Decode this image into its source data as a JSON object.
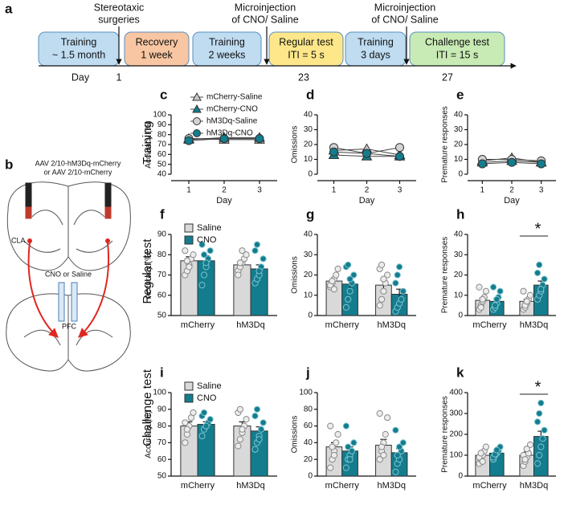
{
  "timeline": {
    "panel": "a",
    "stages": [
      {
        "label": [
          "Training",
          "~ 1.5 month"
        ],
        "color": "#bfdcf1"
      },
      {
        "label": [
          "Recovery",
          "1 week"
        ],
        "color": "#f8c6a2"
      },
      {
        "label": [
          "Training",
          "2 weeks"
        ],
        "color": "#bfdcf1"
      },
      {
        "label": [
          "Regular test",
          "ITI = 5 s"
        ],
        "color": "#fde78a"
      },
      {
        "label": [
          "Training",
          "3 days"
        ],
        "color": "#bfdcf1"
      },
      {
        "label": [
          "Challenge test",
          "ITI = 15 s"
        ],
        "color": "#c8eab4"
      }
    ],
    "events": [
      [
        "Stereotaxic",
        "surgeries"
      ],
      [
        "Microinjection",
        "of CNO/ Saline"
      ],
      [
        "Microinjection",
        "of CNO/ Saline"
      ]
    ],
    "day_label": "Day",
    "days": [
      "1",
      "23",
      "27"
    ]
  },
  "brain": {
    "panel": "b",
    "virus": [
      "AAV 2/10-hM3Dq-mCherry",
      "or AAV 2/10-mCherry"
    ],
    "source": "CLA",
    "injection": "CNO or Saline",
    "target": "PFC"
  },
  "row_labels": [
    "Training",
    "Regular test",
    "Challenge test"
  ],
  "chart_data": [
    {
      "type": "line",
      "panel": "c",
      "ylabel": "Accuracy (%)",
      "xlabel": "Day",
      "x": [
        1,
        2,
        3
      ],
      "xlim": [
        0.5,
        3.5
      ],
      "xticks": [
        1,
        2,
        3
      ],
      "ylim": [
        40,
        100
      ],
      "yticks": [
        40,
        50,
        60,
        70,
        80,
        90,
        100
      ],
      "legend": "upper center",
      "series": [
        {
          "name": "mCherry-Saline",
          "color": "#c8c8c8",
          "marker": "triangle",
          "values": [
            76,
            75,
            75
          ]
        },
        {
          "name": "mCherry-CNO",
          "color": "#137d8e",
          "marker": "triangle",
          "values": [
            75,
            77,
            77
          ]
        },
        {
          "name": "hM3Dq-Saline",
          "color": "#d3d3d3",
          "marker": "circle",
          "values": [
            76,
            76,
            76
          ]
        },
        {
          "name": "hM3Dq-CNO",
          "color": "#137d8e",
          "marker": "circle",
          "values": [
            74,
            76,
            76
          ]
        }
      ]
    },
    {
      "type": "line",
      "panel": "d",
      "ylabel": "Omissions",
      "xlabel": "Day",
      "x": [
        1,
        2,
        3
      ],
      "xlim": [
        0.5,
        3.5
      ],
      "xticks": [
        1,
        2,
        3
      ],
      "ylim": [
        0,
        40
      ],
      "yticks": [
        0,
        10,
        20,
        30,
        40
      ],
      "series": [
        {
          "name": "mCherry-Saline",
          "color": "#c8c8c8",
          "marker": "triangle",
          "values": [
            16,
            17,
            13
          ]
        },
        {
          "name": "mCherry-CNO",
          "color": "#137d8e",
          "marker": "triangle",
          "values": [
            13,
            12,
            12
          ]
        },
        {
          "name": "hM3Dq-Saline",
          "color": "#d3d3d3",
          "marker": "circle",
          "values": [
            18,
            14,
            18
          ]
        },
        {
          "name": "hM3Dq-CNO",
          "color": "#137d8e",
          "marker": "circle",
          "values": [
            15,
            14,
            12
          ]
        }
      ]
    },
    {
      "type": "line",
      "panel": "e",
      "ylabel": "Premature responses",
      "xlabel": "Day",
      "x": [
        1,
        2,
        3
      ],
      "xlim": [
        0.5,
        3.5
      ],
      "xticks": [
        1,
        2,
        3
      ],
      "ylim": [
        0,
        40
      ],
      "yticks": [
        0,
        10,
        20,
        30,
        40
      ],
      "series": [
        {
          "name": "mCherry-Saline",
          "color": "#c8c8c8",
          "marker": "triangle",
          "values": [
            9,
            11,
            8
          ]
        },
        {
          "name": "mCherry-CNO",
          "color": "#137d8e",
          "marker": "triangle",
          "values": [
            8,
            9,
            8
          ]
        },
        {
          "name": "hM3Dq-Saline",
          "color": "#d3d3d3",
          "marker": "circle",
          "values": [
            10,
            10,
            9
          ]
        },
        {
          "name": "hM3Dq-CNO",
          "color": "#137d8e",
          "marker": "circle",
          "values": [
            7,
            8,
            7
          ]
        }
      ]
    },
    {
      "type": "bar",
      "panel": "f",
      "ylabel": "Accuracy (%)",
      "categories": [
        "mCherry",
        "hM3Dq"
      ],
      "ylim": [
        50,
        90
      ],
      "yticks": [
        50,
        60,
        70,
        80,
        90
      ],
      "legend": "upper left",
      "series": [
        {
          "name": "Saline",
          "color": "#d9d9d9",
          "values": [
            77,
            75
          ],
          "errors": [
            2,
            1.5
          ],
          "points": [
            [
              70,
              72,
              75,
              78,
              80,
              82,
              77,
              74
            ],
            [
              72,
              74,
              76,
              78,
              80,
              70,
              76,
              82
            ]
          ]
        },
        {
          "name": "CNO",
          "color": "#137d8e",
          "values": [
            77,
            73
          ],
          "errors": [
            2.5,
            2
          ],
          "points": [
            [
              65,
              70,
              74,
              78,
              82,
              85,
              80,
              76
            ],
            [
              66,
              68,
              70,
              74,
              78,
              82,
              85,
              72
            ]
          ]
        }
      ]
    },
    {
      "type": "bar",
      "panel": "g",
      "ylabel": "Omissions",
      "categories": [
        "mCherry",
        "hM3Dq"
      ],
      "ylim": [
        0,
        40
      ],
      "yticks": [
        0,
        10,
        20,
        30,
        40
      ],
      "series": [
        {
          "name": "Saline",
          "color": "#d9d9d9",
          "values": [
            17,
            15
          ],
          "errors": [
            1.5,
            2.5
          ],
          "points": [
            [
              14,
              16,
              18,
              20,
              23,
              15,
              17,
              13
            ],
            [
              5,
              8,
              12,
              16,
              20,
              23,
              25,
              18
            ]
          ]
        },
        {
          "name": "CNO",
          "color": "#137d8e",
          "values": [
            15.5,
            10.5
          ],
          "errors": [
            2.5,
            2.5
          ],
          "points": [
            [
              4,
              8,
              12,
              16,
              20,
              24,
              25,
              18
            ],
            [
              2,
              4,
              6,
              8,
              12,
              16,
              20,
              24
            ]
          ]
        }
      ]
    },
    {
      "type": "bar",
      "panel": "h",
      "ylabel": "Premature responses",
      "categories": [
        "mCherry",
        "hM3Dq"
      ],
      "ylim": [
        0,
        40
      ],
      "yticks": [
        0,
        10,
        20,
        30,
        40
      ],
      "annotation": "*",
      "series": [
        {
          "name": "Saline",
          "color": "#d9d9d9",
          "values": [
            7.5,
            7
          ],
          "errors": [
            1.2,
            1
          ],
          "points": [
            [
              3,
              5,
              7,
              9,
              12,
              14,
              4,
              8
            ],
            [
              3,
              4,
              6,
              8,
              10,
              12,
              5,
              7
            ]
          ]
        },
        {
          "name": "CNO",
          "color": "#137d8e",
          "values": [
            7,
            15
          ],
          "errors": [
            1.5,
            2
          ],
          "points": [
            [
              3,
              4,
              6,
              9,
              12,
              14,
              5,
              8
            ],
            [
              8,
              10,
              12,
              15,
              18,
              21,
              25,
              13
            ]
          ]
        }
      ]
    },
    {
      "type": "bar",
      "panel": "i",
      "ylabel": "Accuracy (%)",
      "categories": [
        "mCherry",
        "hM3Dq"
      ],
      "ylim": [
        50,
        100
      ],
      "yticks": [
        50,
        60,
        70,
        80,
        90,
        100
      ],
      "legend": "upper left",
      "series": [
        {
          "name": "Saline",
          "color": "#d9d9d9",
          "values": [
            80,
            80
          ],
          "errors": [
            2.5,
            2.5
          ],
          "points": [
            [
              70,
              75,
              80,
              85,
              88,
              82,
              78
            ],
            [
              68,
              72,
              76,
              80,
              84,
              88,
              90,
              78
            ]
          ]
        },
        {
          "name": "CNO",
          "color": "#137d8e",
          "values": [
            81,
            77
          ],
          "errors": [
            1.5,
            2.5
          ],
          "points": [
            [
              74,
              78,
              80,
              82,
              84,
              86,
              88,
              80
            ],
            [
              66,
              70,
              74,
              78,
              82,
              86,
              90,
              72
            ]
          ]
        }
      ]
    },
    {
      "type": "bar",
      "panel": "j",
      "ylabel": "Omissions",
      "categories": [
        "mCherry",
        "hM3Dq"
      ],
      "ylim": [
        0,
        100
      ],
      "yticks": [
        0,
        20,
        40,
        60,
        80,
        100
      ],
      "series": [
        {
          "name": "Saline",
          "color": "#d9d9d9",
          "values": [
            35,
            37
          ],
          "errors": [
            5,
            7
          ],
          "points": [
            [
              10,
              20,
              30,
              40,
              50,
              60,
              35,
              25
            ],
            [
              20,
              30,
              40,
              50,
              70,
              75,
              35,
              25
            ]
          ]
        },
        {
          "name": "CNO",
          "color": "#137d8e",
          "values": [
            30,
            28
          ],
          "errors": [
            5,
            5
          ],
          "points": [
            [
              10,
              20,
              25,
              30,
              40,
              60,
              35,
              20
            ],
            [
              5,
              15,
              20,
              30,
              40,
              55,
              25,
              35
            ]
          ]
        }
      ]
    },
    {
      "type": "bar",
      "panel": "k",
      "ylabel": "Premature responses",
      "categories": [
        "mCherry",
        "hM3Dq"
      ],
      "ylim": [
        0,
        400
      ],
      "yticks": [
        0,
        100,
        200,
        300,
        400
      ],
      "annotation": "*",
      "series": [
        {
          "name": "Saline",
          "color": "#d9d9d9",
          "values": [
            100,
            100
          ],
          "errors": [
            12,
            15
          ],
          "points": [
            [
              60,
              80,
              100,
              120,
              140,
              90,
              110,
              70
            ],
            [
              50,
              70,
              90,
              110,
              150,
              100,
              80,
              130
            ]
          ]
        },
        {
          "name": "CNO",
          "color": "#137d8e",
          "values": [
            110,
            190
          ],
          "errors": [
            10,
            25
          ],
          "points": [
            [
              80,
              100,
              110,
              120,
              140,
              90,
              105,
              125
            ],
            [
              60,
              100,
              140,
              180,
              220,
              260,
              300,
              350
            ]
          ]
        }
      ]
    }
  ]
}
